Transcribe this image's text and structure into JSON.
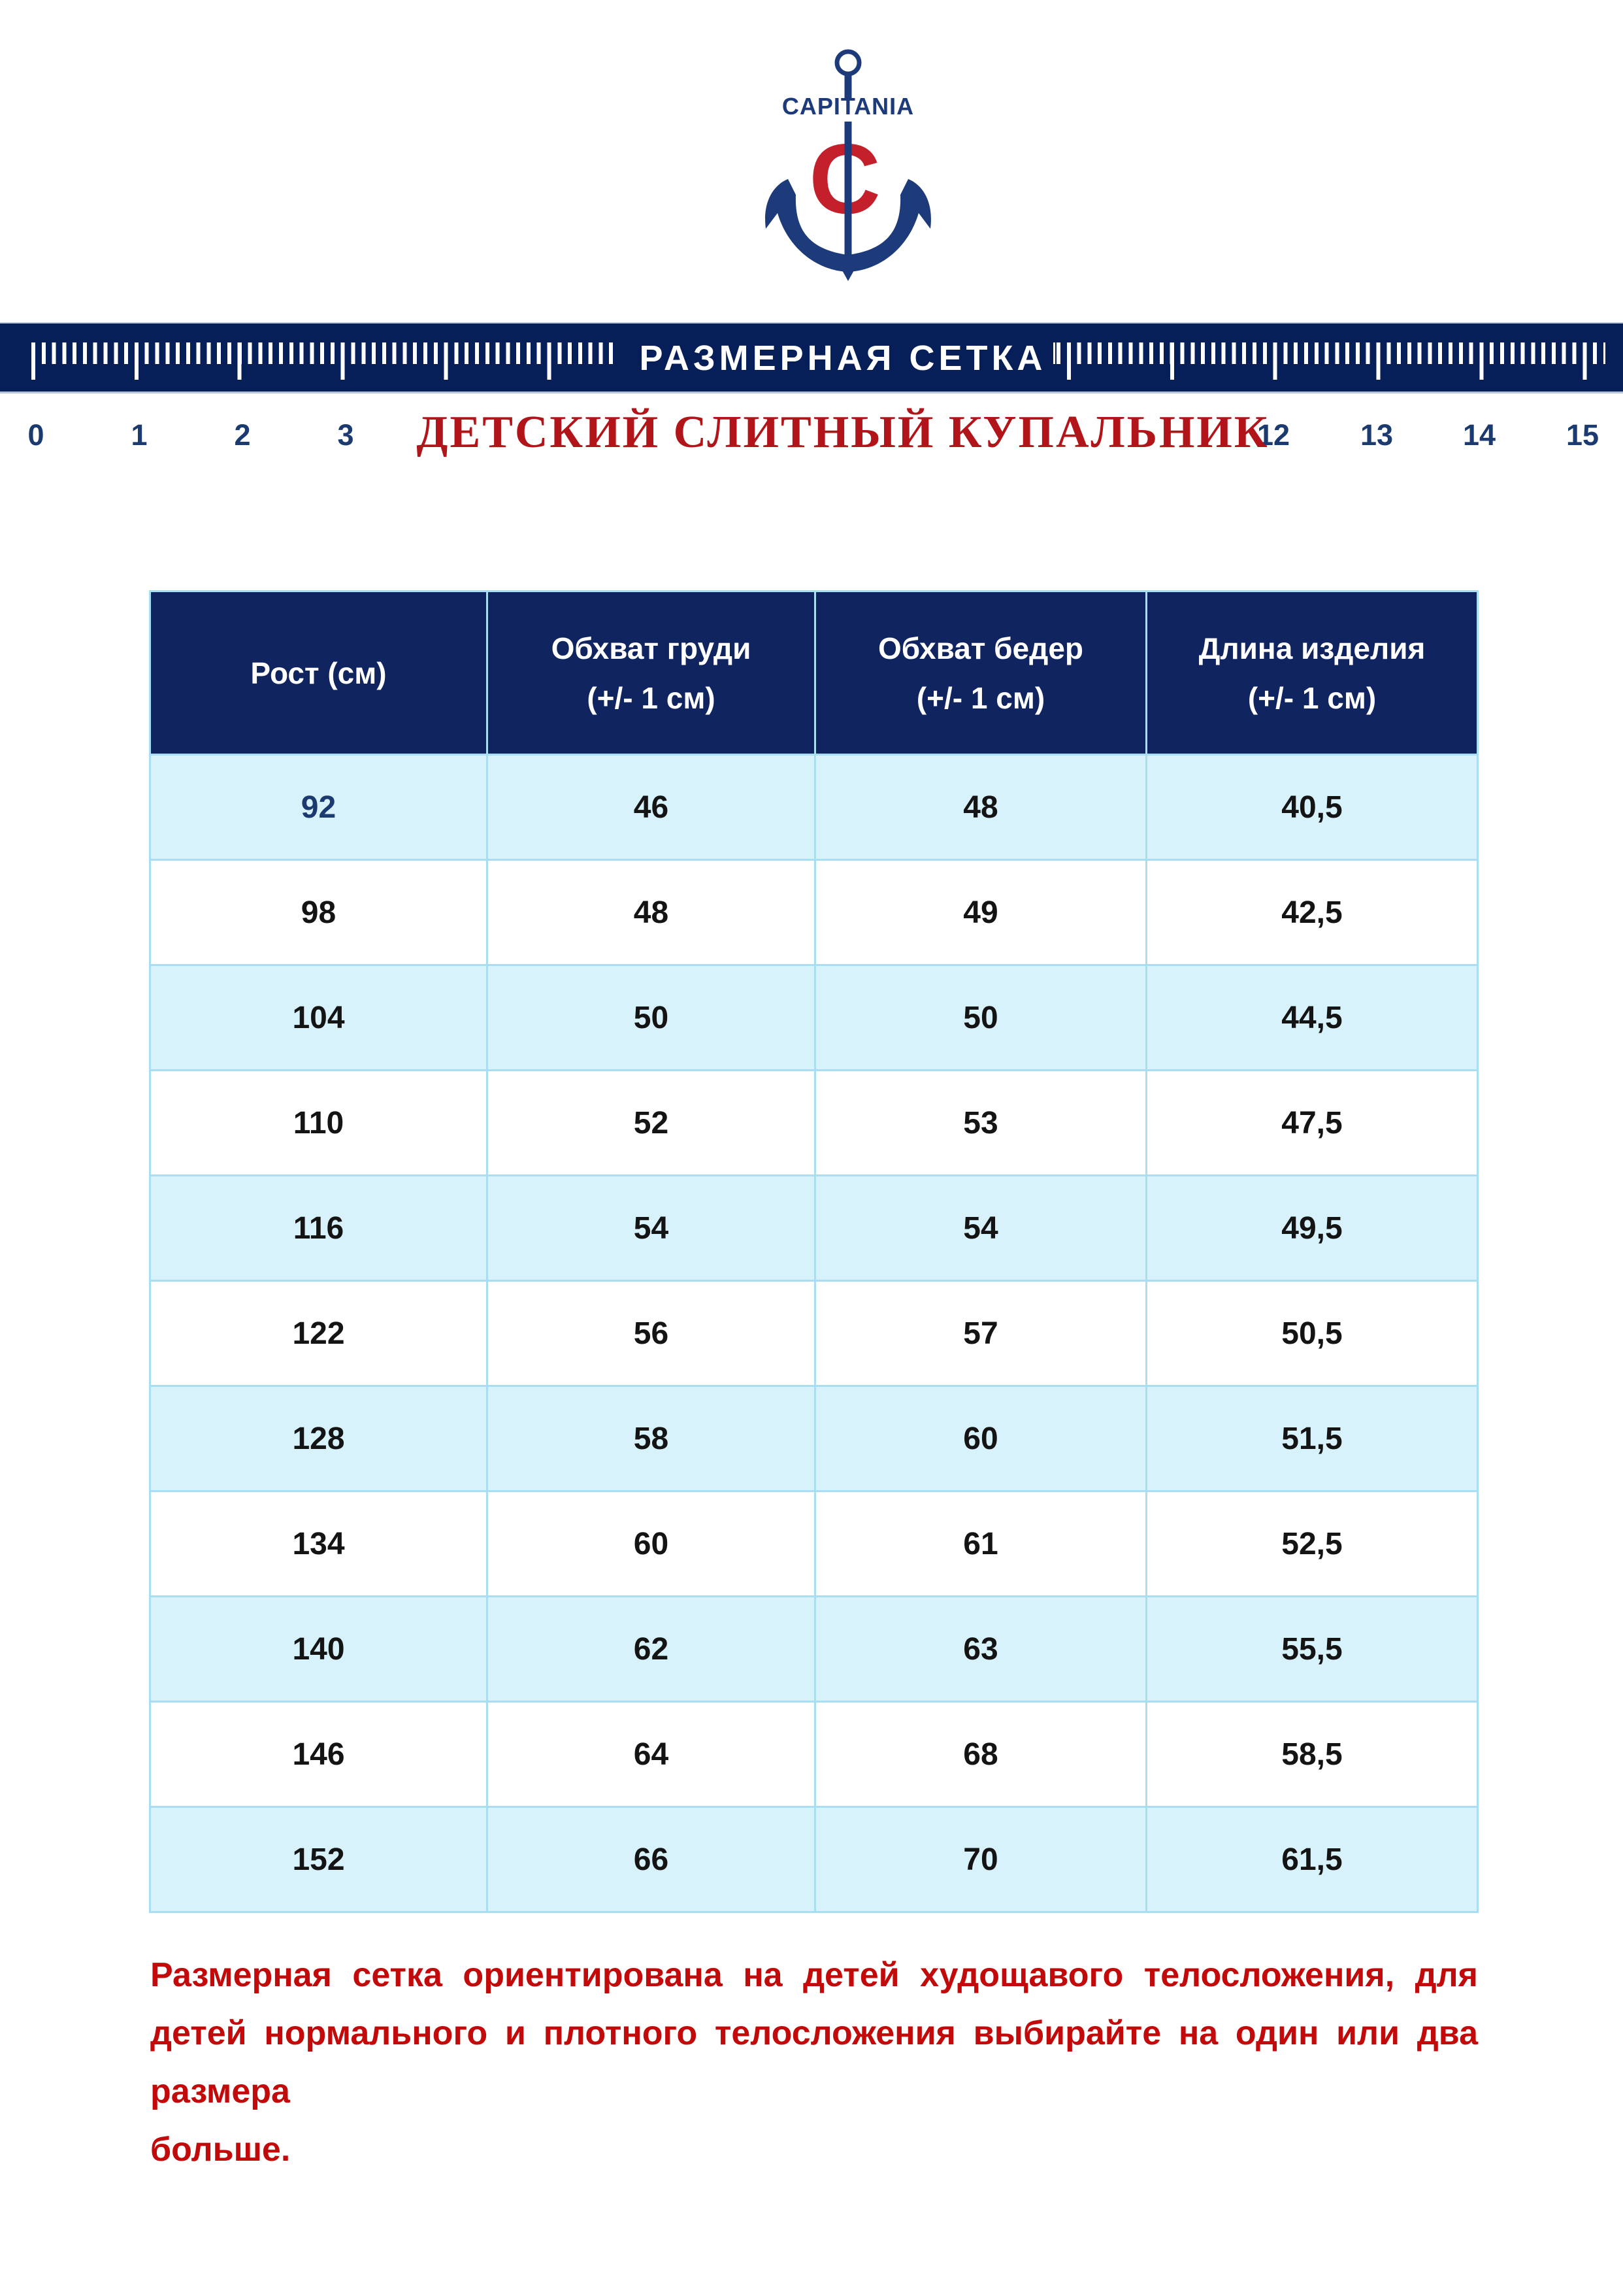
{
  "logo": {
    "brand": "CAPITANIA",
    "monogram": "C"
  },
  "ruler": {
    "title": "РАЗМЕРНАЯ СЕТКА",
    "numbers": [
      "0",
      "1",
      "2",
      "3",
      "12",
      "13",
      "14",
      "15"
    ]
  },
  "subtitle": "ДЕТСКИЙ СЛИТНЫЙ КУПАЛЬНИК",
  "table": {
    "headers": [
      [
        "Рост (см)",
        ""
      ],
      [
        "Обхват груди",
        "(+/- 1 см)"
      ],
      [
        "Обхват бедер",
        "(+/- 1 см)"
      ],
      [
        "Длина изделия",
        "(+/- 1 см)"
      ]
    ],
    "rows": [
      [
        "92",
        "46",
        "48",
        "40,5"
      ],
      [
        "98",
        "48",
        "49",
        "42,5"
      ],
      [
        "104",
        "50",
        "50",
        "44,5"
      ],
      [
        "110",
        "52",
        "53",
        "47,5"
      ],
      [
        "116",
        "54",
        "54",
        "49,5"
      ],
      [
        "122",
        "56",
        "57",
        "50,5"
      ],
      [
        "128",
        "58",
        "60",
        "51,5"
      ],
      [
        "134",
        "60",
        "61",
        "52,5"
      ],
      [
        "140",
        "62",
        "63",
        "55,5"
      ],
      [
        "146",
        "64",
        "68",
        "58,5"
      ],
      [
        "152",
        "66",
        "70",
        "61,5"
      ]
    ]
  },
  "footnote_lines": [
    "Размерная сетка ориентирована на детей худощавого телосложения, для",
    "детей нормального и плотного телосложения выбирайте на один или два размера",
    "больше."
  ],
  "colors": {
    "navy_band": "#071f58",
    "navy_header": "#102460",
    "navy_logo": "#1d3b7a",
    "red_logo": "#c3202c",
    "red_title": "#b11419",
    "red_note": "#c20a0a",
    "row_blue": "#d8f2fc",
    "line_blue": "#a9ddf1",
    "number_navy": "#1b3a70",
    "text_black": "#141414"
  }
}
